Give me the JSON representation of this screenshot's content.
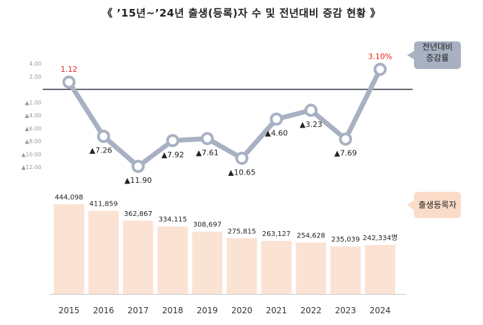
{
  "title": "《 ’15년~’24년 출생(등록)자 수 및 전년대비 증감 현황 》",
  "chart_data": [
    {
      "type": "line",
      "name": "yoy-change",
      "callout_lines": [
        "전년대비",
        "증감률"
      ],
      "x": [
        "2015",
        "2016",
        "2017",
        "2018",
        "2019",
        "2020",
        "2021",
        "2022",
        "2023",
        "2024"
      ],
      "values": [
        1.12,
        -7.26,
        -11.9,
        -7.92,
        -7.61,
        -10.65,
        -4.6,
        -3.23,
        -7.69,
        3.1
      ],
      "value_labels": [
        "1.12",
        "▲7.26",
        "▲11.90",
        "▲7.92",
        "▲7.61",
        "▲10.65",
        "▲4.60",
        "▲3.23",
        "▲7.69",
        "3.10%"
      ],
      "y_ticks": [
        4.0,
        2.0,
        -2.0,
        -4.0,
        -6.0,
        -8.0,
        -10.0,
        -12.0
      ],
      "y_tick_labels": [
        "4.00",
        "2.00",
        "▲2.00",
        "▲4.00",
        "▲6.00",
        "▲8.00",
        "▲10.00",
        "▲12.00"
      ],
      "ylim": [
        -12,
        4
      ],
      "zero_line": true,
      "colors": {
        "line": "#a7b1c2",
        "marker_fill": "#ffffff",
        "positive_label": "#e8201a",
        "negative_label": "#222222",
        "zero_line": "#2b3340",
        "callout_fill": "#a7b1c2"
      }
    },
    {
      "type": "bar",
      "name": "births",
      "callout_lines": [
        "출생등록자"
      ],
      "categories": [
        "2015",
        "2016",
        "2017",
        "2018",
        "2019",
        "2020",
        "2021",
        "2022",
        "2023",
        "2024"
      ],
      "values": [
        444098,
        411859,
        362867,
        334115,
        308697,
        275815,
        263127,
        254628,
        235039,
        242334
      ],
      "value_labels": [
        "444,098",
        "411,859",
        "362,867",
        "334,115",
        "308,697",
        "275,815",
        "263,127",
        "254,628",
        "235,039",
        "242,334명"
      ],
      "ylim": [
        0,
        444098
      ],
      "colors": {
        "bar": "#fbe3d3",
        "callout_fill": "#fbdcc8",
        "axis": "#c8c8c8"
      }
    }
  ]
}
